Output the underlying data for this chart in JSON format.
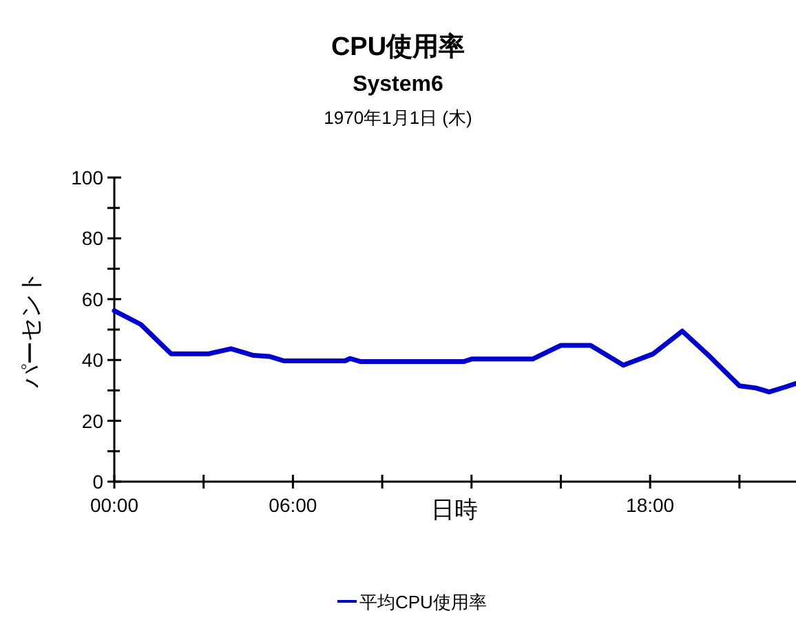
{
  "chart_data": {
    "type": "line",
    "title": "CPU使用率",
    "subtitle": "System6",
    "annotations": [
      "1970年1月1日 (木)"
    ],
    "xlabel": "日時",
    "ylabel": "パーセント",
    "x": [
      0,
      0.89,
      1.91,
      3.15,
      3.92,
      4.68,
      5.2,
      5.7,
      7.75,
      7.92,
      8.26,
      11.75,
      12.0,
      14.05,
      15.0,
      16.0,
      17.1,
      18.1,
      19.08,
      20.0,
      21.0,
      21.55,
      22.0,
      22.5,
      22.9
    ],
    "series": [
      {
        "name": "平均CPU使用率",
        "color": "#0000cc",
        "values": [
          56.2,
          51.7,
          42,
          42,
          43.7,
          41.5,
          41.2,
          39.7,
          39.7,
          40.5,
          39.5,
          39.5,
          40.3,
          40.3,
          44.8,
          44.8,
          38.3,
          42,
          49.5,
          41.2,
          31.5,
          30.8,
          29.5,
          31,
          32.3
        ]
      }
    ],
    "xlim": [
      0,
      22.9
    ],
    "xticks": [
      {
        "value": 0,
        "label": "00:00"
      },
      {
        "value": 3,
        "label": null
      },
      {
        "value": 6,
        "label": "06:00"
      },
      {
        "value": 9,
        "label": null
      },
      {
        "value": 12,
        "label": null
      },
      {
        "value": 15,
        "label": null
      },
      {
        "value": 18,
        "label": "18:00"
      },
      {
        "value": 21,
        "label": null
      }
    ],
    "ylim": [
      0,
      100
    ],
    "yticks": [
      0,
      {
        "value": 10,
        "label": null
      },
      20,
      {
        "value": 30,
        "label": null
      },
      40,
      {
        "value": 50,
        "label": null
      },
      60,
      {
        "value": 70,
        "label": null
      },
      80,
      {
        "value": 90,
        "label": null
      },
      100
    ],
    "grid": false,
    "legend": "bottom",
    "marker": "none",
    "line_style": "solid"
  }
}
